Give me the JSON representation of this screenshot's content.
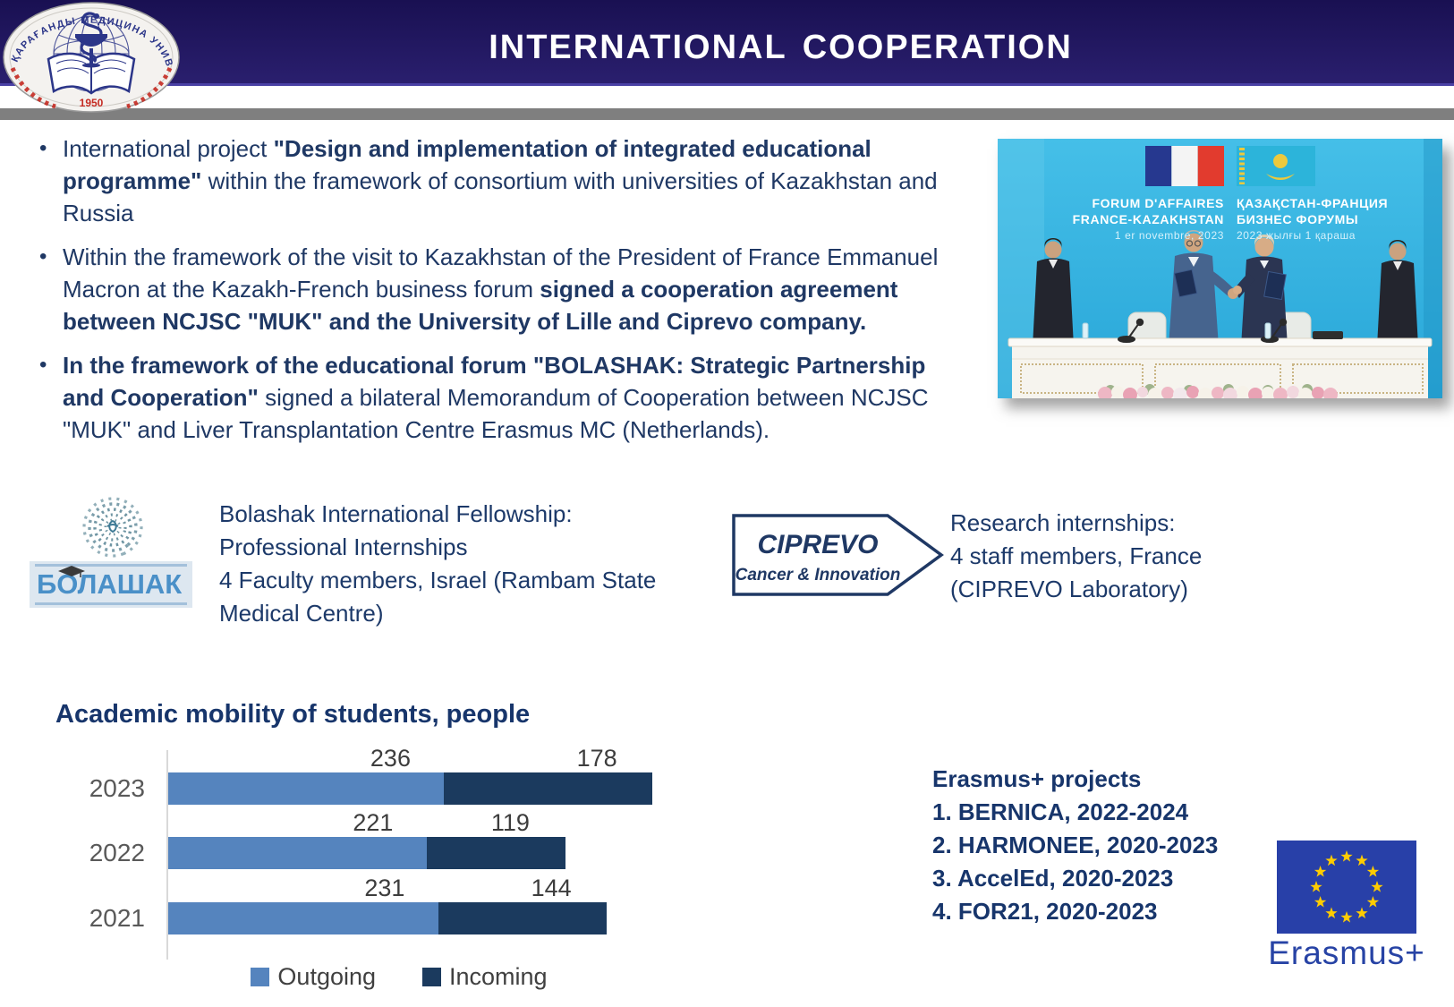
{
  "header": {
    "title": "International cooperation"
  },
  "logo": {
    "ring_text": "ҚАРАҒАНДЫ МЕДИЦИНА УНИВЕРСИТЕТІ",
    "year": "1950"
  },
  "bullets": [
    {
      "segments": [
        {
          "text": "International project ",
          "bold": false
        },
        {
          "text": "\"Design and implementation of integrated educational programme\"",
          "bold": true
        },
        {
          "text": " within the framework of consortium with universities of Kazakhstan and Russia",
          "bold": false
        }
      ]
    },
    {
      "segments": [
        {
          "text": "Within the framework of the visit to Kazakhstan of the President of France Emmanuel Macron at the Kazakh-French business forum ",
          "bold": false
        },
        {
          "text": "signed a cooperation agreement between NCJSC \"MUK\" and the University of Lille and Ciprevo company.",
          "bold": true
        }
      ]
    },
    {
      "segments": [
        {
          "text": "In the framework of the educational forum \"BOLASHAK: Strategic Partnership and Cooperation\"",
          "bold": true
        },
        {
          "text": " signed a bilateral Memorandum of Cooperation between NCJSC \"MUK\" and Liver Transplantation Centre Erasmus MC (Netherlands).",
          "bold": false
        }
      ]
    }
  ],
  "photo": {
    "caption_left": [
      "FORUM D'AFFAIRES",
      "FRANCE-KAZAKHSTAN",
      "1 er novembre, 2023"
    ],
    "caption_right": [
      "ҚАЗАҚСТАН-ФРАНЦИЯ",
      "БИЗНЕС ФОРУМЫ",
      "2023 жылғы 1 қараша"
    ]
  },
  "bolashak": {
    "logo_text": "БОЛАШАК",
    "lines": [
      "Bolashak International Fellowship:",
      "Professional Internships",
      "4 Faculty members, Israel (Rambam State",
      "Medical Centre)"
    ]
  },
  "ciprevo": {
    "logo_title": "CIPREVO",
    "logo_subtitle": "Cancer & Innovation",
    "lines": [
      "Research internships:",
      "4 staff members, France",
      "(CIPREVO Laboratory)"
    ]
  },
  "chart_data": {
    "type": "bar",
    "orientation": "horizontal-stacked",
    "title": "Academic mobility of students, people",
    "categories": [
      "2023",
      "2022",
      "2021"
    ],
    "series": [
      {
        "name": "Outgoing",
        "values": [
          236,
          221,
          231
        ],
        "color": "#5584be"
      },
      {
        "name": "Incoming",
        "values": [
          178,
          119,
          144
        ],
        "color": "#1b3a5e"
      }
    ],
    "data_labels": true,
    "legend_position": "bottom",
    "grid": false
  },
  "erasmus": {
    "heading": "Erasmus+ projects",
    "items": [
      "1. BERNICA, 2022-2024",
      "2. HARMONEE, 2020-2023",
      "3. AccelEd, 2020-2023",
      "4. FOR21, 2020-2023"
    ],
    "flag_label": "Erasmus+"
  },
  "colors": {
    "header_bg": "#231a63",
    "text_navy": "#1f3864",
    "outgoing": "#5584be",
    "incoming": "#1b3a5e",
    "eu_blue": "#2840a8",
    "star_yellow": "#ffcc00",
    "bolashak_blue": "#4a90c8",
    "photo_cyan": "#35b5e2",
    "gray_bar": "#7f7f7f"
  }
}
